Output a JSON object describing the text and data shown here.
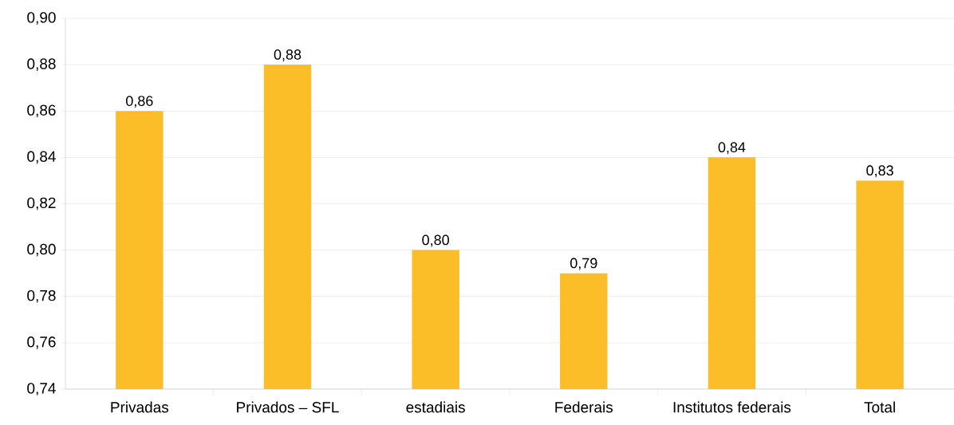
{
  "chart_data": {
    "type": "bar",
    "categories": [
      "Privadas",
      "Privados – SFL",
      "estadiais",
      "Federais",
      "Institutos federais",
      "Total"
    ],
    "values": [
      0.86,
      0.88,
      0.8,
      0.79,
      0.84,
      0.83
    ],
    "value_labels": [
      "0,86",
      "0,88",
      "0,80",
      "0,79",
      "0,84",
      "0,83"
    ],
    "color": "#fbbe29",
    "ylim": [
      0.74,
      0.9
    ],
    "yticks": [
      {
        "value": 0.74,
        "label": "0,74"
      },
      {
        "value": 0.76,
        "label": "0,76"
      },
      {
        "value": 0.78,
        "label": "0,78"
      },
      {
        "value": 0.8,
        "label": "0,80"
      },
      {
        "value": 0.82,
        "label": "0,82"
      },
      {
        "value": 0.84,
        "label": "0,84"
      },
      {
        "value": 0.86,
        "label": "0,86"
      },
      {
        "value": 0.88,
        "label": "0,88"
      },
      {
        "value": 0.9,
        "label": "0,90"
      }
    ],
    "grid": "y"
  }
}
